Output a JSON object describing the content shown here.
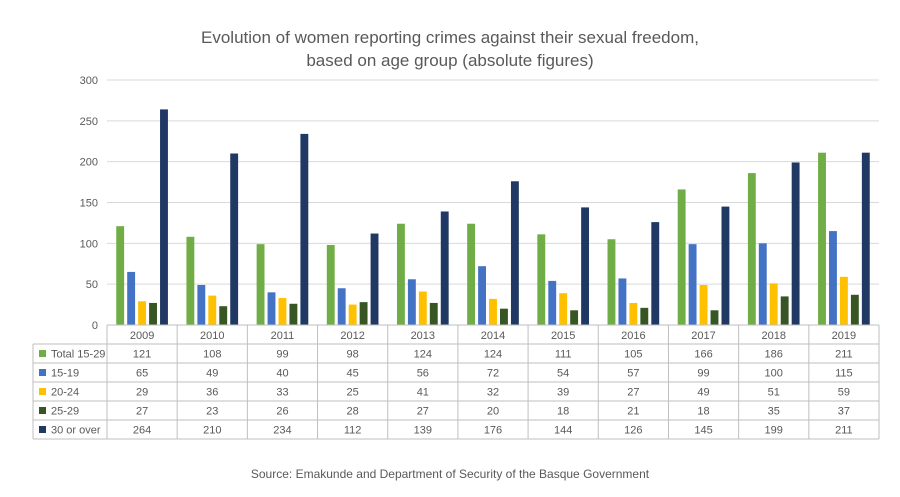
{
  "title": {
    "line1": "Evolution of women reporting crimes against their sexual freedom,",
    "line2": "based on age group (absolute figures)"
  },
  "source": "Source: Emakunde and Department of Security of the Basque Government",
  "chart_data": {
    "type": "bar",
    "categories": [
      "2009",
      "2010",
      "2011",
      "2012",
      "2013",
      "2014",
      "2015",
      "2016",
      "2017",
      "2018",
      "2019"
    ],
    "ylim": [
      0,
      300
    ],
    "yticks": [
      "0",
      "50",
      "100",
      "150",
      "200",
      "250",
      "300"
    ],
    "grid": true,
    "legend": "data-table",
    "series": [
      {
        "name": "Total 15-29",
        "color": "#70ad47",
        "values": [
          121,
          108,
          99,
          98,
          124,
          124,
          111,
          105,
          166,
          186,
          211
        ]
      },
      {
        "name": "15-19",
        "color": "#4472c4",
        "values": [
          65,
          49,
          40,
          45,
          56,
          72,
          54,
          57,
          99,
          100,
          115
        ]
      },
      {
        "name": "20-24",
        "color": "#ffc000",
        "values": [
          29,
          36,
          33,
          25,
          41,
          32,
          39,
          27,
          49,
          51,
          59
        ]
      },
      {
        "name": "25-29",
        "color": "#375623",
        "values": [
          27,
          23,
          26,
          28,
          27,
          20,
          18,
          21,
          18,
          35,
          37
        ]
      },
      {
        "name": "30 or over",
        "color": "#203864",
        "values": [
          264,
          210,
          234,
          112,
          139,
          176,
          144,
          126,
          145,
          199,
          211
        ]
      }
    ]
  }
}
